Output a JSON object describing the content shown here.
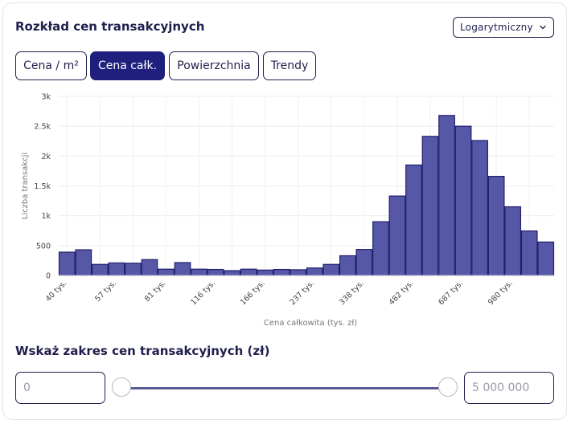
{
  "header": {
    "title": "Rozkład cen transakcyjnych",
    "scale_select": "Logarytmiczny"
  },
  "tabs": [
    {
      "label": "Cena / m²",
      "active": false
    },
    {
      "label": "Cena całk.",
      "active": true
    },
    {
      "label": "Powierzchnia",
      "active": false
    },
    {
      "label": "Trendy",
      "active": false
    }
  ],
  "chart_data": {
    "type": "bar",
    "title": "",
    "xlabel": "Cena całkowita (tys. zł)",
    "ylabel": "Liczba transakcji",
    "ylim": [
      0,
      3000
    ],
    "y_ticks": [
      "0",
      "500",
      "1k",
      "1.5k",
      "2k",
      "2.5k",
      "3k"
    ],
    "x_scale": "log",
    "x_tick_labels": [
      "40 tys.",
      "57 tys.",
      "81 tys.",
      "116 tys.",
      "166 tys.",
      "237 tys.",
      "338 tys.",
      "482 tys.",
      "687 tys.",
      "980 tys."
    ],
    "values": [
      390,
      430,
      185,
      210,
      205,
      265,
      105,
      215,
      105,
      100,
      80,
      105,
      90,
      100,
      95,
      125,
      185,
      330,
      435,
      900,
      1330,
      1850,
      2330,
      2680,
      2500,
      2260,
      1660,
      1150,
      745,
      560
    ],
    "bar_color": "#5757a8",
    "bar_stroke": "#1f1f6d",
    "grid": true
  },
  "range": {
    "title": "Wskaż zakres cen transakcyjnych (zł)",
    "min_placeholder": "0",
    "max_placeholder": "5 000 000",
    "min_value": 0,
    "max_value": 5000000
  }
}
